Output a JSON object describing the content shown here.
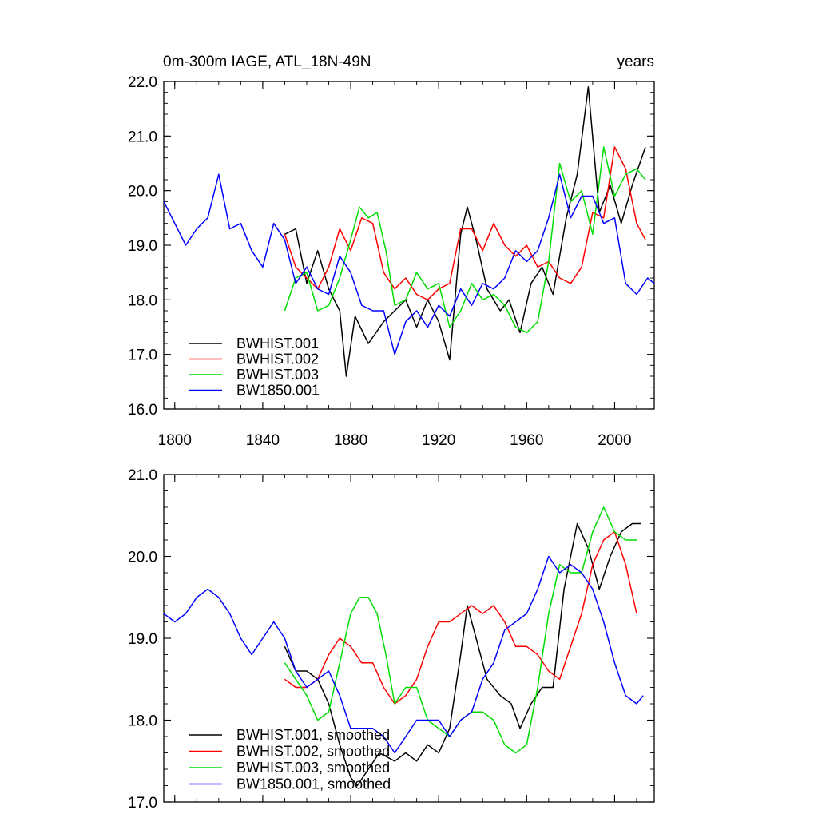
{
  "chart_data": [
    {
      "type": "line",
      "title": "0m-300m IAGE, ATL_18N-49N",
      "units_label": "years",
      "xlim": [
        1795,
        2018
      ],
      "ylim": [
        16.0,
        22.0
      ],
      "x_ticks": [
        1800,
        1840,
        1880,
        1920,
        1960,
        2000
      ],
      "x_tick_labels": [
        "1800",
        "1840",
        "1880",
        "1920",
        "1960",
        "2000"
      ],
      "y_ticks": [
        16.0,
        17.0,
        18.0,
        19.0,
        20.0,
        21.0,
        22.0
      ],
      "y_tick_labels": [
        "16.0",
        "17.0",
        "18.0",
        "19.0",
        "20.0",
        "21.0",
        "22.0"
      ],
      "legend_position": "bottom-left",
      "series": [
        {
          "name": "BWHIST.001",
          "color": "#000000",
          "x": [
            1850,
            1855,
            1860,
            1865,
            1870,
            1875,
            1878,
            1882,
            1888,
            1895,
            1900,
            1905,
            1910,
            1915,
            1920,
            1925,
            1930,
            1933,
            1937,
            1942,
            1948,
            1952,
            1957,
            1962,
            1967,
            1972,
            1978,
            1983,
            1988,
            1993,
            1998,
            2003,
            2008,
            2014
          ],
          "y": [
            19.2,
            19.3,
            18.3,
            18.9,
            18.2,
            17.8,
            16.6,
            17.7,
            17.2,
            17.6,
            17.8,
            18.0,
            17.5,
            18.0,
            17.6,
            16.9,
            19.2,
            19.7,
            19.1,
            18.2,
            17.8,
            18.0,
            17.4,
            18.3,
            18.6,
            18.1,
            19.5,
            20.3,
            21.9,
            19.6,
            20.1,
            19.4,
            20.1,
            20.8
          ]
        },
        {
          "name": "BWHIST.002",
          "color": "#ff0000",
          "x": [
            1850,
            1855,
            1860,
            1865,
            1870,
            1875,
            1880,
            1885,
            1890,
            1895,
            1900,
            1905,
            1910,
            1915,
            1920,
            1925,
            1930,
            1935,
            1940,
            1945,
            1950,
            1955,
            1960,
            1965,
            1970,
            1975,
            1980,
            1985,
            1990,
            1995,
            2000,
            2005,
            2010,
            2014
          ],
          "y": [
            19.2,
            18.6,
            18.4,
            18.2,
            18.6,
            19.3,
            18.9,
            19.5,
            19.4,
            18.5,
            18.2,
            18.4,
            18.1,
            18.0,
            18.2,
            18.3,
            19.3,
            19.3,
            18.9,
            19.4,
            19.0,
            18.8,
            19.0,
            18.6,
            18.7,
            18.4,
            18.3,
            18.6,
            19.6,
            19.5,
            20.8,
            20.4,
            19.4,
            19.1
          ]
        },
        {
          "name": "BWHIST.003",
          "color": "#00dd00",
          "x": [
            1850,
            1855,
            1860,
            1865,
            1870,
            1875,
            1880,
            1884,
            1888,
            1892,
            1896,
            1900,
            1905,
            1910,
            1915,
            1920,
            1925,
            1930,
            1935,
            1940,
            1945,
            1950,
            1955,
            1960,
            1965,
            1970,
            1975,
            1980,
            1985,
            1990,
            1995,
            2000,
            2005,
            2010,
            2014
          ],
          "y": [
            17.8,
            18.4,
            18.5,
            17.8,
            17.9,
            18.4,
            19.1,
            19.7,
            19.5,
            19.6,
            18.9,
            17.9,
            18.0,
            18.5,
            18.2,
            18.3,
            17.5,
            17.8,
            18.3,
            18.0,
            18.1,
            17.9,
            17.5,
            17.4,
            17.6,
            18.7,
            20.5,
            19.8,
            20.0,
            19.2,
            20.8,
            19.9,
            20.3,
            20.4,
            20.2
          ]
        },
        {
          "name": "BW1850.001",
          "color": "#0000ff",
          "x": [
            1795,
            1800,
            1805,
            1810,
            1815,
            1820,
            1825,
            1830,
            1835,
            1840,
            1845,
            1850,
            1855,
            1860,
            1865,
            1870,
            1875,
            1880,
            1885,
            1890,
            1895,
            1900,
            1905,
            1910,
            1915,
            1920,
            1925,
            1930,
            1935,
            1940,
            1945,
            1950,
            1955,
            1960,
            1965,
            1970,
            1975,
            1980,
            1985,
            1990,
            1995,
            2000,
            2005,
            2010,
            2015,
            2018
          ],
          "y": [
            19.8,
            19.4,
            19.0,
            19.3,
            19.5,
            20.3,
            19.3,
            19.4,
            18.9,
            18.6,
            19.4,
            19.1,
            18.3,
            18.6,
            18.2,
            18.1,
            18.8,
            18.5,
            17.9,
            17.8,
            17.8,
            17.0,
            17.6,
            17.8,
            17.5,
            17.9,
            17.7,
            18.2,
            17.9,
            18.3,
            18.2,
            18.4,
            18.9,
            18.7,
            18.9,
            19.5,
            20.3,
            19.5,
            19.9,
            19.9,
            19.4,
            19.5,
            18.3,
            18.1,
            18.4,
            18.3
          ]
        }
      ],
      "legend": [
        "BWHIST.001",
        "BWHIST.002",
        "BWHIST.003",
        "BW1850.001"
      ]
    },
    {
      "type": "line",
      "title": "",
      "xlim": [
        1795,
        2018
      ],
      "ylim": [
        17.0,
        21.0
      ],
      "x_ticks": [
        1800,
        1840,
        1880,
        1920,
        1960,
        2000
      ],
      "y_ticks": [
        17.0,
        18.0,
        19.0,
        20.0,
        21.0
      ],
      "y_tick_labels": [
        "17.0",
        "18.0",
        "19.0",
        "20.0",
        "21.0"
      ],
      "legend_position": "bottom-left",
      "series": [
        {
          "name": "BWHIST.001, smoothed",
          "color": "#000000",
          "x": [
            1850,
            1855,
            1860,
            1865,
            1870,
            1875,
            1880,
            1883,
            1888,
            1893,
            1900,
            1905,
            1910,
            1915,
            1920,
            1925,
            1930,
            1933,
            1937,
            1942,
            1948,
            1953,
            1957,
            1962,
            1967,
            1972,
            1977,
            1983,
            1988,
            1993,
            1998,
            2003,
            2008,
            2012
          ],
          "y": [
            18.9,
            18.6,
            18.6,
            18.5,
            18.2,
            17.7,
            17.3,
            17.2,
            17.4,
            17.6,
            17.5,
            17.6,
            17.5,
            17.7,
            17.6,
            17.9,
            18.8,
            19.4,
            19.0,
            18.5,
            18.3,
            18.2,
            17.9,
            18.2,
            18.4,
            18.4,
            19.6,
            20.4,
            20.1,
            19.6,
            20.0,
            20.3,
            20.4,
            20.4
          ]
        },
        {
          "name": "BWHIST.002, smoothed",
          "color": "#ff0000",
          "x": [
            1850,
            1855,
            1860,
            1865,
            1870,
            1875,
            1880,
            1885,
            1890,
            1895,
            1900,
            1905,
            1910,
            1915,
            1920,
            1925,
            1930,
            1935,
            1940,
            1945,
            1950,
            1955,
            1960,
            1965,
            1970,
            1975,
            1980,
            1985,
            1990,
            1995,
            2000,
            2005,
            2010
          ],
          "y": [
            18.5,
            18.4,
            18.4,
            18.5,
            18.8,
            19.0,
            18.9,
            18.7,
            18.7,
            18.4,
            18.2,
            18.3,
            18.5,
            18.9,
            19.2,
            19.2,
            19.3,
            19.4,
            19.3,
            19.4,
            19.2,
            18.9,
            18.9,
            18.8,
            18.6,
            18.5,
            18.9,
            19.3,
            19.9,
            20.2,
            20.3,
            19.9,
            19.3
          ]
        },
        {
          "name": "BWHIST.003, smoothed",
          "color": "#00dd00",
          "x": [
            1850,
            1855,
            1860,
            1865,
            1870,
            1875,
            1880,
            1884,
            1888,
            1892,
            1896,
            1900,
            1905,
            1910,
            1915,
            1920,
            1925,
            1930,
            1935,
            1940,
            1945,
            1950,
            1955,
            1960,
            1965,
            1970,
            1975,
            1980,
            1985,
            1990,
            1995,
            2000,
            2005,
            2010
          ],
          "y": [
            18.7,
            18.5,
            18.3,
            18.0,
            18.1,
            18.7,
            19.3,
            19.5,
            19.5,
            19.3,
            18.8,
            18.2,
            18.4,
            18.4,
            18.0,
            17.9,
            17.8,
            18.0,
            18.1,
            18.1,
            18.0,
            17.7,
            17.6,
            17.7,
            18.4,
            19.3,
            19.9,
            19.8,
            19.8,
            20.3,
            20.6,
            20.3,
            20.2,
            20.2
          ]
        },
        {
          "name": "BW1850.001, smoothed",
          "color": "#0000ff",
          "x": [
            1795,
            1800,
            1805,
            1810,
            1815,
            1820,
            1825,
            1830,
            1835,
            1840,
            1845,
            1850,
            1855,
            1860,
            1865,
            1870,
            1875,
            1880,
            1885,
            1890,
            1895,
            1900,
            1905,
            1910,
            1915,
            1920,
            1925,
            1930,
            1935,
            1940,
            1945,
            1950,
            1955,
            1960,
            1965,
            1970,
            1975,
            1980,
            1985,
            1990,
            1995,
            2000,
            2005,
            2010,
            2013
          ],
          "y": [
            19.3,
            19.2,
            19.3,
            19.5,
            19.6,
            19.5,
            19.3,
            19.0,
            18.8,
            19.0,
            19.2,
            19.0,
            18.6,
            18.4,
            18.5,
            18.6,
            18.3,
            17.9,
            17.9,
            17.9,
            17.8,
            17.6,
            17.8,
            18.0,
            18.0,
            18.0,
            17.8,
            18.0,
            18.1,
            18.5,
            18.7,
            19.1,
            19.2,
            19.3,
            19.6,
            20.0,
            19.8,
            19.9,
            19.8,
            19.6,
            19.2,
            18.7,
            18.3,
            18.2,
            18.3
          ]
        }
      ],
      "legend": [
        "BWHIST.001, smoothed",
        "BWHIST.002, smoothed",
        "BWHIST.003, smoothed",
        "BW1850.001, smoothed"
      ]
    }
  ]
}
